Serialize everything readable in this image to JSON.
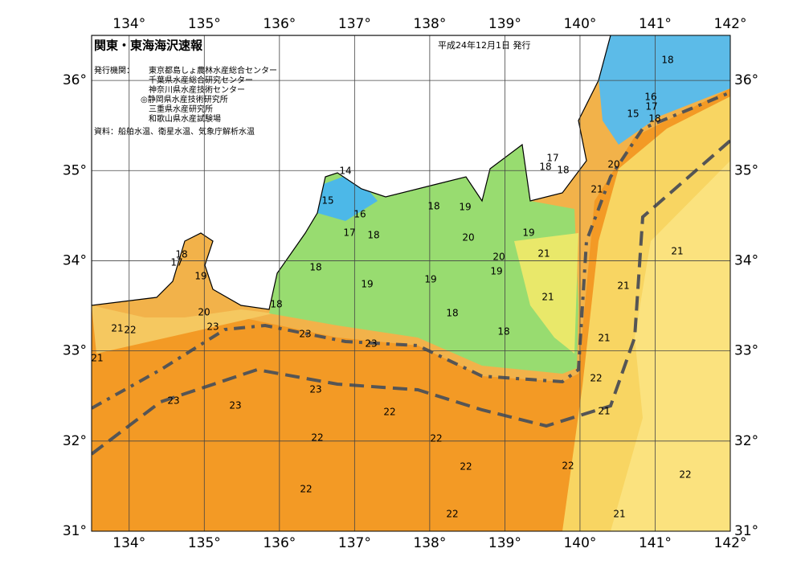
{
  "header": {
    "title": "関東・東海海沢速報",
    "issued": "平成24年12月1日 発行",
    "issuer_label": "発行機関：",
    "issuers": [
      "東京都島しょ農林水産総合センター",
      "千葉県水産総合研究センター",
      "神奈川県水産技術センター",
      "◎静岡県水産技術研究所",
      "三重県水産研究所",
      "和歌山県水産試験場"
    ],
    "source": "資料：船舶水温、衛星水温、気象庁解析水温"
  },
  "map": {
    "lon_ticks": [
      {
        "value": 134,
        "label": "134°"
      },
      {
        "value": 135,
        "label": "135°"
      },
      {
        "value": 136,
        "label": "136°"
      },
      {
        "value": 137,
        "label": "137°"
      },
      {
        "value": 138,
        "label": "138°"
      },
      {
        "value": 139,
        "label": "139°"
      },
      {
        "value": 140,
        "label": "140°"
      },
      {
        "value": 141,
        "label": "141°"
      },
      {
        "value": 142,
        "label": "142°"
      }
    ],
    "lat_ticks": [
      {
        "value": 31,
        "label": "31°"
      },
      {
        "value": 32,
        "label": "32°"
      },
      {
        "value": 33,
        "label": "33°"
      },
      {
        "value": 34,
        "label": "34°"
      },
      {
        "value": 35,
        "label": "35°"
      },
      {
        "value": 36,
        "label": "36°"
      }
    ],
    "contour_labels": [
      "18",
      "16",
      "17",
      "15",
      "18",
      "17",
      "18",
      "18",
      "20",
      "21",
      "14",
      "15",
      "16",
      "18",
      "19",
      "17",
      "18",
      "20",
      "19",
      "18",
      "17",
      "21",
      "20",
      "19",
      "18",
      "21",
      "19",
      "19",
      "19",
      "21",
      "18",
      "21",
      "20",
      "21",
      "22",
      "23",
      "23",
      "23",
      "18",
      "18",
      "21",
      "21",
      "22",
      "23",
      "23",
      "23",
      "22",
      "21",
      "22",
      "22",
      "22",
      "22",
      "22",
      "22",
      "22",
      "21"
    ]
  }
}
